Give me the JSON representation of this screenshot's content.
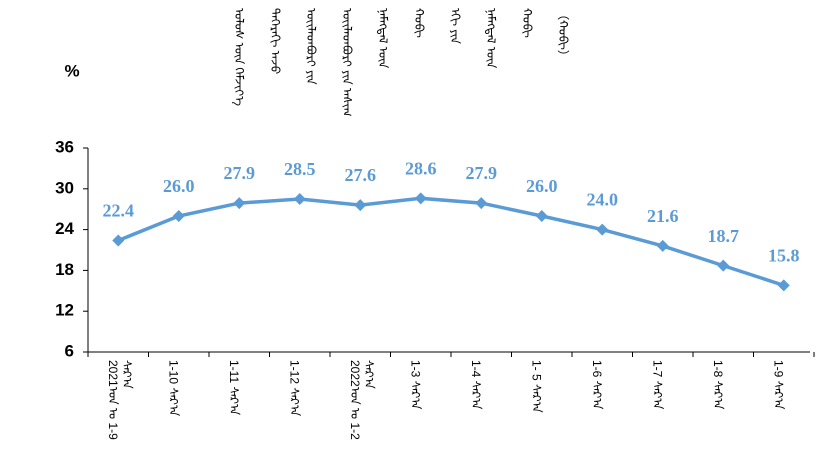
{
  "chart_data": {
    "type": "line",
    "title_lines": [
      "ᠤᠯᠤᠰ ᠦᠨ ᠬᠡᠮᠵᠢᠶ᠎ᠡ",
      "ᠳᠡᠭᠡᠷᠡᠬᠢ ᠠᠵᠤ",
      "ᠦᠢᠯᠡᠳᠪᠦᠷᠢ ᠶᠢᠨ",
      "ᠦᠢᠯᠡᠳᠪᠦᠷᠢ ᠶᠢᠨ ᠠᠰᠢᠭ",
      "ᠨᠡᠮᠡᠭᠳᠡᠯ ᠦᠨ",
      "ᠬᠤᠪᠢ",
      "ᠡᠬᠢ ᠶᠢᠨ",
      "ᠨᠡᠮᠡᠭᠳᠡᠯ ᠦᠨ",
      "ᠬᠤᠪᠢ",
      "（ᠬᠤᠪᠢ）"
    ],
    "y_unit": "%",
    "categories": [
      "2021ᠣᠨ ᠤ 1-9 ᠰᠠᠷ᠎ᠠ",
      "1-10 ᠰᠠᠷ᠎ᠠ",
      "1-11 ᠰᠠᠷ᠎ᠠ",
      "1-12 ᠰᠠᠷ᠎ᠠ",
      "2022ᠣᠨ ᠤ 1-2 ᠰᠠᠷ᠎ᠠ",
      "1-3 ᠰᠠᠷ᠎ᠠ",
      "1-4 ᠰᠠᠷ᠎ᠠ",
      "1- 5 ᠰᠠᠷ᠎ᠠ",
      "1-6 ᠰᠠᠷ᠎ᠠ",
      "1-7 ᠰᠠᠷ᠎ᠠ",
      "1-8 ᠰᠠᠷ᠎ᠠ",
      "1-9 ᠰᠠᠷ᠎ᠠ"
    ],
    "series": [
      {
        "color": "#5b9bd5",
        "values": [
          22.4,
          26.0,
          27.9,
          28.5,
          27.6,
          28.6,
          27.9,
          26.0,
          24.0,
          21.6,
          18.7,
          15.8
        ],
        "value_labels": [
          "22.4",
          "26.0",
          "27.9",
          "28.5",
          "27.6",
          "28.6",
          "27.9",
          "26.0",
          "24.0",
          "21.6",
          "18.7",
          "15.8"
        ]
      }
    ],
    "ylim": [
      6,
      36
    ],
    "yticks": [
      6,
      12,
      18,
      24,
      30,
      36
    ]
  }
}
